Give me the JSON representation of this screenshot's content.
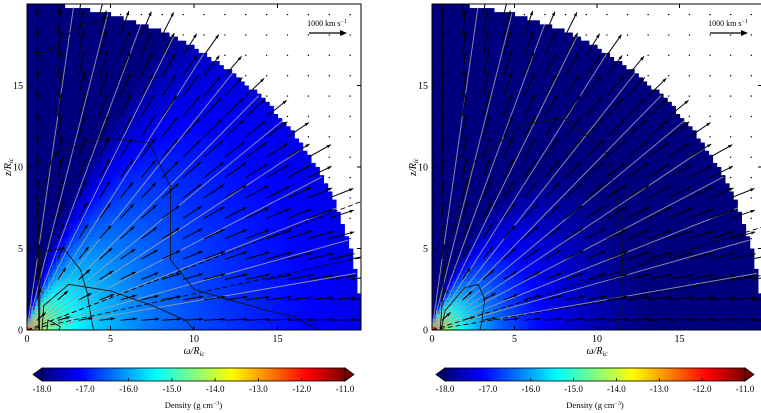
{
  "chart_data": [
    {
      "type": "vector-field",
      "panel": "left",
      "xlabel": "ω/R",
      "xlabel_sub": "ic",
      "ylabel": "z/R",
      "ylabel_sub": "ic",
      "xlim": [
        0,
        20
      ],
      "ylim": [
        0,
        20
      ],
      "xticks": [
        0,
        5,
        10,
        15
      ],
      "yticks": [
        0,
        5,
        10,
        15
      ],
      "domain_radius": 20,
      "scale_label": "1000 km s",
      "scale_label_sup": "−1",
      "density_scale": 1.0,
      "contours": [
        [
          [
            1.2,
            0
          ],
          [
            1.25,
            0.6
          ],
          [
            1.5,
            0.5
          ],
          [
            2,
            0.2
          ],
          [
            1.9,
            0
          ]
        ],
        [
          [
            0.9,
            0
          ],
          [
            1,
            1.5
          ],
          [
            2.5,
            2.8
          ],
          [
            5,
            2.4
          ],
          [
            7.5,
            1.5
          ],
          [
            9.5,
            0.6
          ],
          [
            10,
            0
          ]
        ],
        [
          [
            0.75,
            0
          ],
          [
            0.8,
            4.8
          ],
          [
            2.2,
            5.0
          ],
          [
            3.2,
            3.7
          ],
          [
            3.6,
            2.3
          ],
          [
            3.9,
            0.4
          ],
          [
            4,
            0
          ]
        ],
        [
          [
            0.7,
            0
          ],
          [
            0.7,
            7.8
          ],
          [
            1.6,
            10.8
          ],
          [
            4.5,
            11.8
          ],
          [
            7.3,
            11.5
          ],
          [
            8.6,
            8.8
          ],
          [
            8.6,
            4.3
          ],
          [
            10,
            2.5
          ],
          [
            14,
            1.3
          ],
          [
            16,
            0.8
          ],
          [
            17.5,
            0
          ]
        ],
        [
          [
            0.3,
            17.2
          ],
          [
            1.5,
            17.2
          ],
          [
            3,
            18.6
          ],
          [
            5,
            19.2
          ]
        ]
      ],
      "dashed_lines": [
        {
          "angle_deg": 12.5
        },
        {
          "angle_deg": 21.5
        }
      ]
    },
    {
      "type": "vector-field",
      "panel": "right",
      "xlabel": "ω/R",
      "xlabel_sub": "ic",
      "ylabel": "z/R",
      "ylabel_sub": "ic",
      "xlim": [
        0,
        20
      ],
      "ylim": [
        0,
        20
      ],
      "xticks": [
        0,
        5,
        10,
        15
      ],
      "yticks": [
        0,
        5,
        10,
        15
      ],
      "domain_radius": 20,
      "scale_label": "1000 km s",
      "scale_label_sup": "−1",
      "density_scale": 1.35,
      "contours": [
        [
          [
            0.55,
            0
          ],
          [
            0.8,
            1.2
          ],
          [
            2,
            2.6
          ],
          [
            2.8,
            2.8
          ],
          [
            3.2,
            1.9
          ],
          [
            3,
            0.4
          ],
          [
            2.9,
            0
          ]
        ],
        [
          [
            0.5,
            0
          ],
          [
            0.8,
            4.5
          ],
          [
            2.5,
            10.3
          ],
          [
            5.5,
            12.6
          ],
          [
            8,
            13
          ],
          [
            10.5,
            11
          ],
          [
            11.5,
            6.5
          ],
          [
            11.6,
            1.5
          ],
          [
            11.2,
            0.2
          ],
          [
            11.8,
            0
          ]
        ]
      ],
      "dashed_lines": [
        {
          "angle_deg": 9.5
        },
        {
          "angle_deg": 17.5
        }
      ]
    }
  ],
  "colorbar": {
    "label": "Density (g cm",
    "label_sup": "−3",
    "label_end": ")",
    "range": [
      -18.0,
      -11.0
    ],
    "ticks": [
      "-18.0",
      "-17.0",
      "-16.0",
      "-15.0",
      "-14.0",
      "-13.0",
      "-12.0",
      "-11.0"
    ],
    "colormap": [
      "#00007f",
      "#0000ff",
      "#007fff",
      "#00ffff",
      "#7fff7f",
      "#ffff00",
      "#ff7f00",
      "#ff0000",
      "#7f0000"
    ]
  }
}
